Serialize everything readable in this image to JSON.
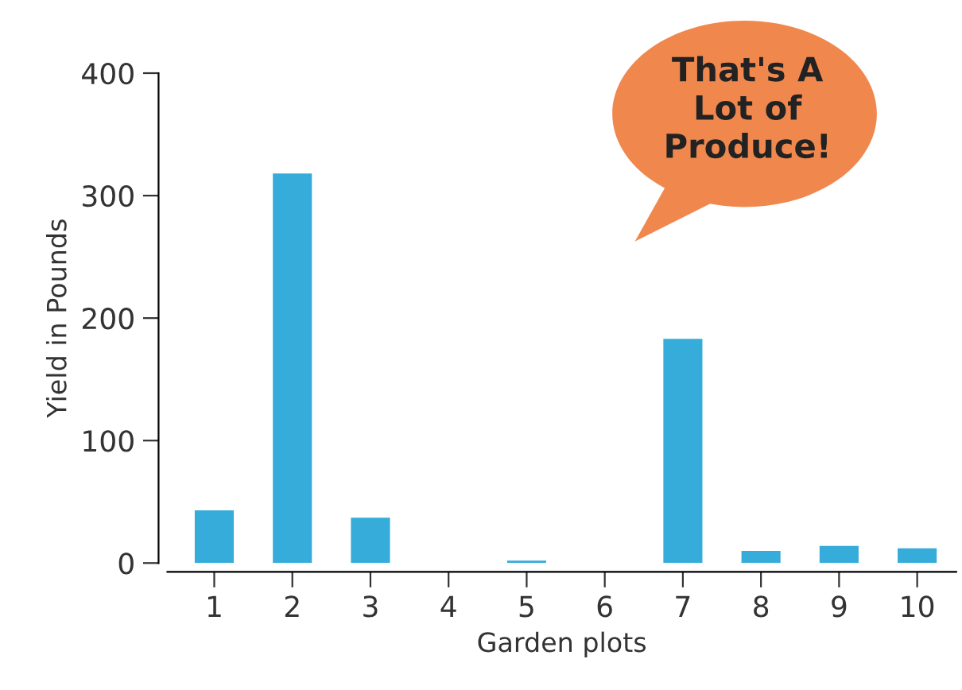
{
  "chart_data": {
    "type": "bar",
    "categories": [
      "1",
      "2",
      "3",
      "4",
      "5",
      "6",
      "7",
      "8",
      "9",
      "10"
    ],
    "values": [
      43,
      318,
      37,
      0,
      2,
      0,
      183,
      10,
      14,
      12
    ],
    "color": "#35acd9",
    "xlabel": "Garden plots",
    "ylabel": "Yield in Pounds",
    "ylim": [
      0,
      400
    ],
    "yticks": [
      0,
      100,
      200,
      300,
      400
    ],
    "grid": false,
    "legend": false,
    "annotations": [
      "That's A\nLot of\nProduce!"
    ]
  }
}
